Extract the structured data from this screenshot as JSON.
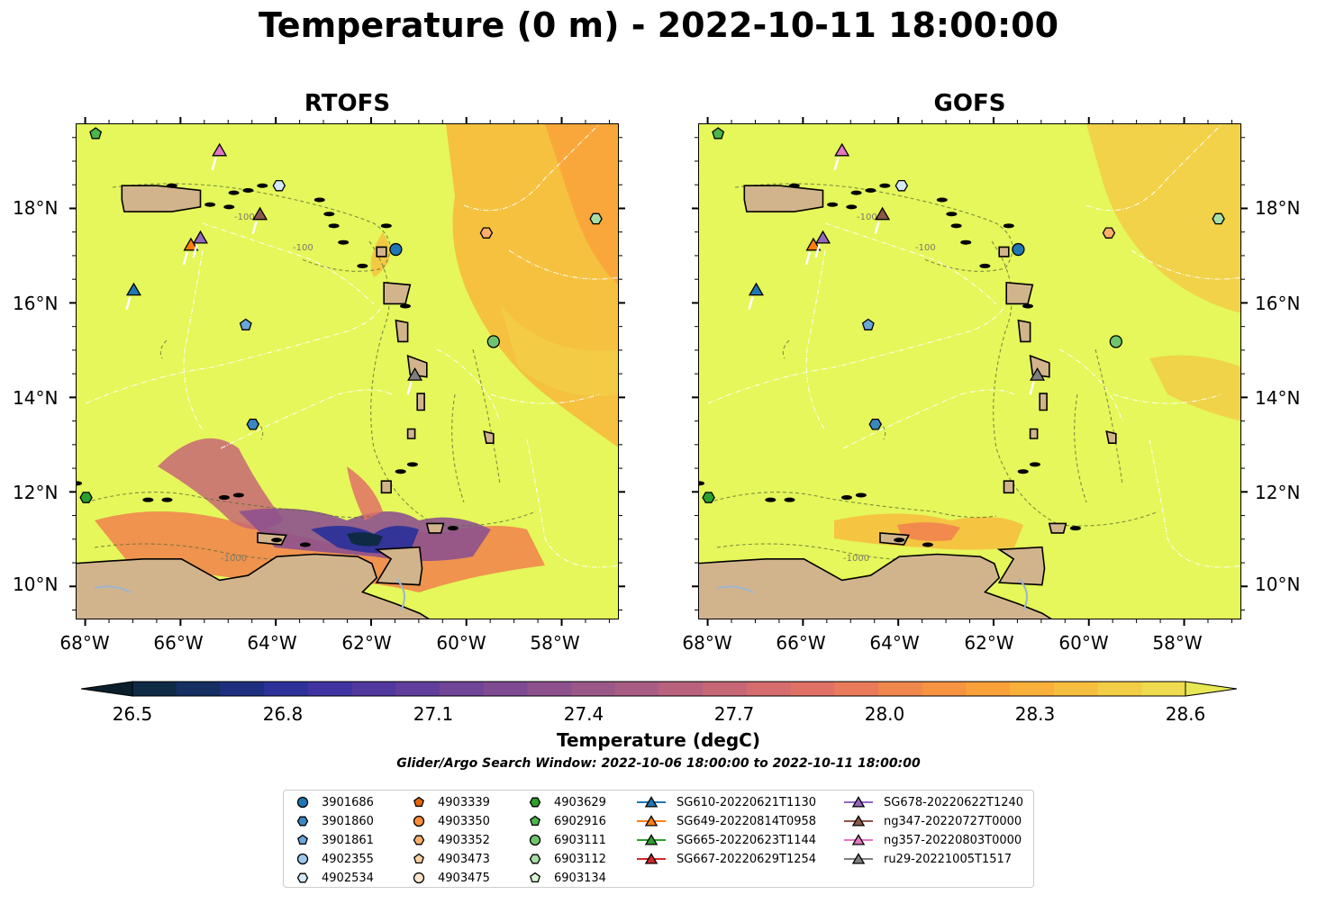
{
  "title": "Temperature (0 m) - 2022-10-11 18:00:00",
  "panels": [
    {
      "title": "RTOFS",
      "variant": "rtofs"
    },
    {
      "title": "GOFS",
      "variant": "gofs"
    }
  ],
  "axes": {
    "x_ticks": [
      "68°W",
      "66°W",
      "64°W",
      "62°W",
      "60°W",
      "58°W"
    ],
    "y_ticks": [
      "18°N",
      "16°N",
      "14°N",
      "12°N",
      "10°N"
    ],
    "lon_range": [
      -68.2,
      -56.8
    ],
    "lat_range": [
      9.3,
      19.8
    ],
    "isobath_labels": [
      "-1000",
      "-100"
    ]
  },
  "colorbar": {
    "label": "Temperature (degC)",
    "ticks": [
      "26.5",
      "26.8",
      "27.1",
      "27.4",
      "27.7",
      "28.0",
      "28.3",
      "28.6"
    ],
    "range": [
      26.5,
      28.6
    ],
    "colors": [
      "#0b1e2b",
      "#0f2a45",
      "#152f62",
      "#1f2f80",
      "#2d3199",
      "#3f34a1",
      "#51389f",
      "#613e9c",
      "#704598",
      "#7e4b93",
      "#8d518e",
      "#9c5789",
      "#aa5d84",
      "#b9627d",
      "#c76776",
      "#d56c6e",
      "#e07166",
      "#e97b5a",
      "#f0874d",
      "#f69441",
      "#f9a23a",
      "#f9b03a",
      "#f6be3e",
      "#f2cd46",
      "#eedb4f",
      "#e7e854"
    ]
  },
  "search_window": "Glider/Argo Search Window: 2022-10-06 18:00:00 to 2022-10-11 18:00:00",
  "legend": {
    "columns": [
      [
        {
          "label": "3901686",
          "marker": "circle",
          "color": "#1f77b4"
        },
        {
          "label": "3901860",
          "marker": "hexagon",
          "color": "#3a87c0"
        },
        {
          "label": "3901861",
          "marker": "pentagon",
          "color": "#6aa6d8"
        },
        {
          "label": "4902355",
          "marker": "circle",
          "color": "#9ec8ec"
        },
        {
          "label": "4902534",
          "marker": "hexagon",
          "color": "#d4e8f8"
        }
      ],
      [
        {
          "label": "4903339",
          "marker": "pentagon",
          "color": "#e6660a"
        },
        {
          "label": "4903350",
          "marker": "circle",
          "color": "#fd8d3c"
        },
        {
          "label": "4903352",
          "marker": "hexagon",
          "color": "#fdae6b"
        },
        {
          "label": "4903473",
          "marker": "pentagon",
          "color": "#fdd0a2"
        },
        {
          "label": "4903475",
          "marker": "circle",
          "color": "#fee6ce"
        }
      ],
      [
        {
          "label": "4903629",
          "marker": "hexagon",
          "color": "#2ca02c"
        },
        {
          "label": "6902916",
          "marker": "pentagon",
          "color": "#4cb54c"
        },
        {
          "label": "6903111",
          "marker": "circle",
          "color": "#6fc56f"
        },
        {
          "label": "6903112",
          "marker": "hexagon",
          "color": "#a6dea6"
        },
        {
          "label": "6903134",
          "marker": "pentagon",
          "color": "#d8f2d3"
        }
      ],
      [
        {
          "label": "SG610-20220621T1130",
          "marker": "triangle",
          "color": "#1f77b4",
          "line": true
        },
        {
          "label": "SG649-20220814T0958",
          "marker": "triangle",
          "color": "#ff7f0e",
          "line": true
        },
        {
          "label": "SG665-20220623T1144",
          "marker": "triangle",
          "color": "#2ca02c",
          "line": true
        },
        {
          "label": "SG667-20220629T1254",
          "marker": "triangle",
          "color": "#d62728",
          "line": true
        }
      ],
      [
        {
          "label": "SG678-20220622T1240",
          "marker": "triangle",
          "color": "#9467bd",
          "line": true
        },
        {
          "label": "ng347-20220727T0000",
          "marker": "triangle",
          "color": "#8c564b",
          "line": true
        },
        {
          "label": "ng357-20220803T0000",
          "marker": "triangle",
          "color": "#e377c2",
          "line": true
        },
        {
          "label": "ru29-20221005T1517",
          "marker": "triangle",
          "color": "#7f7f7f",
          "line": true
        }
      ]
    ]
  },
  "markers": [
    {
      "label": "3901686",
      "lon": -61.5,
      "lat": 17.15
    },
    {
      "label": "3901860",
      "lon": -64.5,
      "lat": 13.45
    },
    {
      "label": "3901861",
      "lon": -64.65,
      "lat": 15.55
    },
    {
      "label": "4902534",
      "lon": -63.95,
      "lat": 18.5
    },
    {
      "label": "4903352",
      "lon": -59.6,
      "lat": 17.5
    },
    {
      "label": "4903629",
      "lon": -68.0,
      "lat": 11.9
    },
    {
      "label": "6902916",
      "lon": -67.8,
      "lat": 19.6
    },
    {
      "label": "6903111",
      "lon": -59.45,
      "lat": 15.2
    },
    {
      "label": "6903112",
      "lon": -57.3,
      "lat": 17.8
    },
    {
      "label": "SG610-20220621T1130",
      "lon": -67.0,
      "lat": 16.3
    },
    {
      "label": "SG649-20220814T0958",
      "lon": -65.8,
      "lat": 17.25
    },
    {
      "label": "SG678-20220622T1240",
      "lon": -65.6,
      "lat": 17.4
    },
    {
      "label": "ng347-20220727T0000",
      "lon": -64.35,
      "lat": 17.9
    },
    {
      "label": "ng357-20220803T0000",
      "lon": -65.2,
      "lat": 19.25
    },
    {
      "label": "ru29-20221005T1517",
      "lon": -61.1,
      "lat": 14.5
    }
  ]
}
